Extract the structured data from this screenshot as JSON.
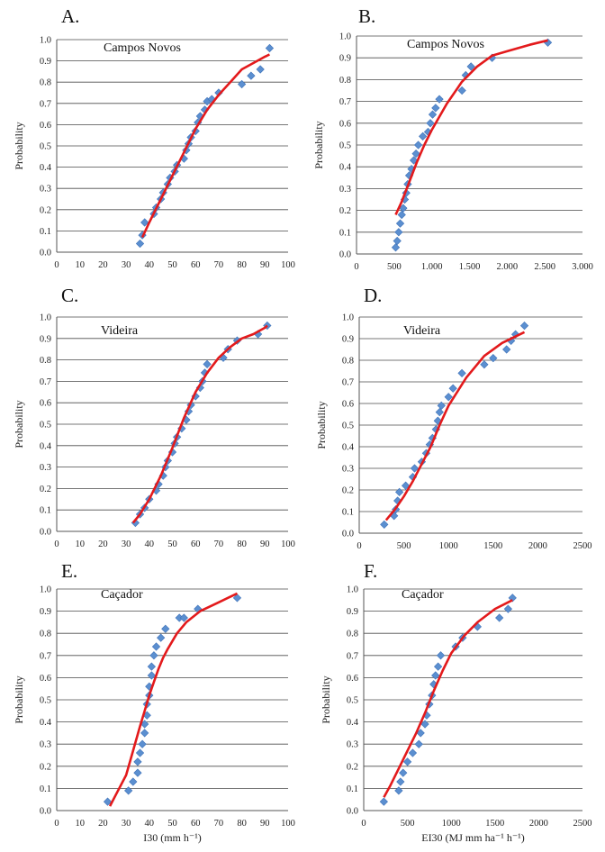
{
  "chart_data": [
    {
      "type": "scatter",
      "letter": "A.",
      "station": "Campos Novos",
      "ylabel": "Probability",
      "xlabel": "",
      "xlim": [
        0,
        100
      ],
      "ylim": [
        0,
        1
      ],
      "xticks": [
        0,
        10,
        20,
        30,
        40,
        50,
        60,
        70,
        80,
        90,
        100
      ],
      "xtick_labels": [
        "0",
        "10",
        "20",
        "30",
        "40",
        "50",
        "60",
        "70",
        "80",
        "90",
        "100"
      ],
      "yticks": [
        0,
        0.1,
        0.2,
        0.3,
        0.4,
        0.5,
        0.6,
        0.7,
        0.8,
        0.9,
        1.0
      ],
      "ytick_labels": [
        "0.0",
        "0.1",
        "0.2",
        "0.3",
        "0.4",
        "0.5",
        "0.6",
        "0.7",
        "0.8",
        "0.9",
        "1.0"
      ],
      "gridlines": "horizontal",
      "observed": {
        "x": [
          36,
          37,
          38,
          42,
          43,
          45,
          46,
          48,
          49,
          51,
          52,
          55,
          56,
          57,
          58,
          60,
          61,
          62,
          64,
          65,
          67,
          70,
          80,
          84,
          88,
          92
        ],
        "y": [
          0.04,
          0.08,
          0.14,
          0.18,
          0.21,
          0.25,
          0.28,
          0.32,
          0.35,
          0.38,
          0.41,
          0.44,
          0.48,
          0.51,
          0.54,
          0.57,
          0.61,
          0.64,
          0.67,
          0.71,
          0.72,
          0.75,
          0.79,
          0.83,
          0.86,
          0.96
        ]
      },
      "fitted": {
        "x": [
          37,
          40,
          45,
          50,
          55,
          60,
          65,
          70,
          75,
          80,
          85,
          90,
          92
        ],
        "y": [
          0.07,
          0.14,
          0.25,
          0.36,
          0.47,
          0.58,
          0.67,
          0.74,
          0.8,
          0.86,
          0.89,
          0.92,
          0.93
        ]
      }
    },
    {
      "type": "scatter",
      "letter": "B.",
      "station": "Campos Novos",
      "ylabel": "Probability",
      "xlabel": "",
      "xlim": [
        0,
        3000
      ],
      "ylim": [
        0,
        1
      ],
      "xticks": [
        0,
        500,
        1000,
        1500,
        2000,
        2500,
        3000
      ],
      "xtick_labels": [
        "0",
        "500",
        "1.000",
        "1.500",
        "2.000",
        "2.500",
        "3.000"
      ],
      "yticks": [
        0,
        0.1,
        0.2,
        0.3,
        0.4,
        0.5,
        0.6,
        0.7,
        0.8,
        0.9,
        1.0
      ],
      "ytick_labels": [
        "0.0",
        "0.1",
        "0.2",
        "0.3",
        "0.4",
        "0.5",
        "0.6",
        "0.7",
        "0.8",
        "0.9",
        "1.0"
      ],
      "gridlines": "horizontal",
      "observed": {
        "x": [
          520,
          540,
          560,
          580,
          600,
          620,
          640,
          660,
          680,
          700,
          730,
          760,
          790,
          820,
          880,
          950,
          980,
          1010,
          1050,
          1100,
          1400,
          1450,
          1520,
          1800,
          2540
        ],
        "y": [
          0.03,
          0.06,
          0.1,
          0.14,
          0.18,
          0.21,
          0.25,
          0.28,
          0.32,
          0.36,
          0.39,
          0.43,
          0.46,
          0.5,
          0.54,
          0.56,
          0.6,
          0.64,
          0.67,
          0.71,
          0.75,
          0.82,
          0.86,
          0.9,
          0.97
        ]
      },
      "fitted": {
        "x": [
          520,
          600,
          700,
          800,
          900,
          1000,
          1200,
          1400,
          1600,
          1800,
          2000,
          2300,
          2540
        ],
        "y": [
          0.18,
          0.24,
          0.33,
          0.42,
          0.5,
          0.57,
          0.69,
          0.79,
          0.86,
          0.91,
          0.93,
          0.96,
          0.98
        ]
      }
    },
    {
      "type": "scatter",
      "letter": "C.",
      "station": "Videira",
      "ylabel": "Probability",
      "xlabel": "",
      "xlim": [
        0,
        100
      ],
      "ylim": [
        0,
        1
      ],
      "xticks": [
        0,
        10,
        20,
        30,
        40,
        50,
        60,
        70,
        80,
        90,
        100
      ],
      "xtick_labels": [
        "0",
        "10",
        "20",
        "30",
        "40",
        "50",
        "60",
        "70",
        "80",
        "90",
        "100"
      ],
      "yticks": [
        0,
        0.1,
        0.2,
        0.3,
        0.4,
        0.5,
        0.6,
        0.7,
        0.8,
        0.9,
        1.0
      ],
      "ytick_labels": [
        "0.0",
        "0.1",
        "0.2",
        "0.3",
        "0.4",
        "0.5",
        "0.6",
        "0.7",
        "0.8",
        "0.9",
        "1.0"
      ],
      "gridlines": "horizontal",
      "observed": {
        "x": [
          34,
          36,
          38,
          40,
          43,
          44,
          46,
          47,
          48,
          50,
          51,
          52,
          54,
          56,
          57,
          58,
          60,
          62,
          63,
          64,
          65,
          72,
          74,
          78,
          87,
          91
        ],
        "y": [
          0.04,
          0.08,
          0.11,
          0.15,
          0.19,
          0.22,
          0.26,
          0.3,
          0.33,
          0.37,
          0.41,
          0.44,
          0.48,
          0.52,
          0.56,
          0.59,
          0.63,
          0.67,
          0.7,
          0.74,
          0.78,
          0.81,
          0.85,
          0.89,
          0.92,
          0.96
        ]
      },
      "fitted": {
        "x": [
          33,
          36,
          40,
          45,
          50,
          55,
          60,
          65,
          70,
          75,
          80,
          85,
          90,
          91
        ],
        "y": [
          0.04,
          0.08,
          0.15,
          0.26,
          0.39,
          0.53,
          0.65,
          0.74,
          0.81,
          0.86,
          0.9,
          0.92,
          0.95,
          0.96
        ]
      }
    },
    {
      "type": "scatter",
      "letter": "D.",
      "station": "Videira",
      "ylabel": "Probability",
      "xlabel": "",
      "xlim": [
        0,
        2500
      ],
      "ylim": [
        0,
        1
      ],
      "xticks": [
        0,
        500,
        1000,
        1500,
        2000,
        2500
      ],
      "xtick_labels": [
        "0",
        "500",
        "1000",
        "1500",
        "2000",
        "2500"
      ],
      "yticks": [
        0,
        0.1,
        0.2,
        0.3,
        0.4,
        0.5,
        0.6,
        0.7,
        0.8,
        0.9,
        1.0
      ],
      "ytick_labels": [
        "0.0",
        "0.1",
        "0.2",
        "0.3",
        "0.4",
        "0.5",
        "0.6",
        "0.7",
        "0.8",
        "0.9",
        "1.0"
      ],
      "gridlines": "horizontal",
      "observed": {
        "x": [
          280,
          390,
          410,
          430,
          450,
          520,
          600,
          620,
          700,
          750,
          790,
          820,
          860,
          880,
          900,
          920,
          1000,
          1050,
          1150,
          1400,
          1500,
          1650,
          1700,
          1750,
          1850
        ],
        "y": [
          0.04,
          0.08,
          0.11,
          0.15,
          0.19,
          0.22,
          0.26,
          0.3,
          0.33,
          0.37,
          0.41,
          0.44,
          0.48,
          0.52,
          0.56,
          0.59,
          0.63,
          0.67,
          0.74,
          0.78,
          0.81,
          0.85,
          0.89,
          0.92,
          0.96
        ]
      },
      "fitted": {
        "x": [
          300,
          400,
          500,
          600,
          700,
          800,
          900,
          1000,
          1200,
          1400,
          1600,
          1800,
          1850
        ],
        "y": [
          0.06,
          0.11,
          0.17,
          0.24,
          0.32,
          0.4,
          0.5,
          0.59,
          0.72,
          0.82,
          0.88,
          0.92,
          0.93
        ]
      }
    },
    {
      "type": "scatter",
      "letter": "E.",
      "station": "Caçador",
      "ylabel": "Probability",
      "xlabel": "I30 (mm  h⁻¹)",
      "xlim": [
        0,
        100
      ],
      "ylim": [
        0,
        1
      ],
      "xticks": [
        0,
        10,
        20,
        30,
        40,
        50,
        60,
        70,
        80,
        90,
        100
      ],
      "xtick_labels": [
        "0",
        "10",
        "20",
        "30",
        "40",
        "50",
        "60",
        "70",
        "80",
        "90",
        "100"
      ],
      "yticks": [
        0,
        0.1,
        0.2,
        0.3,
        0.4,
        0.5,
        0.6,
        0.7,
        0.8,
        0.9,
        1.0
      ],
      "ytick_labels": [
        "0.0",
        "0.1",
        "0.2",
        "0.3",
        "0.4",
        "0.5",
        "0.6",
        "0.7",
        "0.8",
        "0.9",
        "1.0"
      ],
      "gridlines": "horizontal",
      "observed": {
        "x": [
          22,
          31,
          33,
          35,
          35,
          36,
          37,
          38,
          38,
          39,
          39,
          40,
          40,
          41,
          41,
          42,
          43,
          45,
          47,
          53,
          55,
          61,
          78
        ],
        "y": [
          0.04,
          0.09,
          0.13,
          0.17,
          0.22,
          0.26,
          0.3,
          0.35,
          0.39,
          0.43,
          0.48,
          0.52,
          0.56,
          0.61,
          0.65,
          0.7,
          0.74,
          0.78,
          0.82,
          0.87,
          0.87,
          0.91,
          0.96
        ]
      },
      "fitted": {
        "x": [
          23,
          26,
          30,
          33,
          36,
          38,
          40,
          42,
          44,
          46,
          48,
          52,
          56,
          62,
          70,
          78
        ],
        "y": [
          0.02,
          0.08,
          0.16,
          0.27,
          0.38,
          0.45,
          0.52,
          0.58,
          0.64,
          0.69,
          0.73,
          0.8,
          0.85,
          0.9,
          0.94,
          0.98
        ]
      }
    },
    {
      "type": "scatter",
      "letter": "F.",
      "station": "Caçador",
      "ylabel": "Probability",
      "xlabel": "EI30 (MJ mm ha⁻¹ h⁻¹)",
      "xlim": [
        0,
        2500
      ],
      "ylim": [
        0,
        1
      ],
      "xticks": [
        0,
        500,
        1000,
        1500,
        2000,
        2500
      ],
      "xtick_labels": [
        "0",
        "500",
        "1000",
        "1500",
        "2000",
        "2500"
      ],
      "yticks": [
        0,
        0.1,
        0.2,
        0.3,
        0.4,
        0.5,
        0.6,
        0.7,
        0.8,
        0.9,
        1.0
      ],
      "ytick_labels": [
        "0.0",
        "0.1",
        "0.2",
        "0.3",
        "0.4",
        "0.5",
        "0.6",
        "0.7",
        "0.8",
        "0.9",
        "1.0"
      ],
      "gridlines": "horizontal",
      "observed": {
        "x": [
          230,
          400,
          420,
          450,
          500,
          560,
          630,
          650,
          700,
          720,
          750,
          780,
          800,
          820,
          850,
          880,
          1050,
          1130,
          1300,
          1550,
          1650,
          1700
        ],
        "y": [
          0.04,
          0.09,
          0.13,
          0.17,
          0.22,
          0.26,
          0.3,
          0.35,
          0.39,
          0.43,
          0.48,
          0.52,
          0.57,
          0.61,
          0.65,
          0.7,
          0.74,
          0.78,
          0.83,
          0.87,
          0.91,
          0.96
        ]
      },
      "fitted": {
        "x": [
          230,
          300,
          400,
          500,
          600,
          700,
          800,
          900,
          1000,
          1150,
          1300,
          1500,
          1700
        ],
        "y": [
          0.06,
          0.11,
          0.19,
          0.27,
          0.35,
          0.44,
          0.54,
          0.63,
          0.71,
          0.79,
          0.85,
          0.91,
          0.95
        ]
      }
    }
  ]
}
